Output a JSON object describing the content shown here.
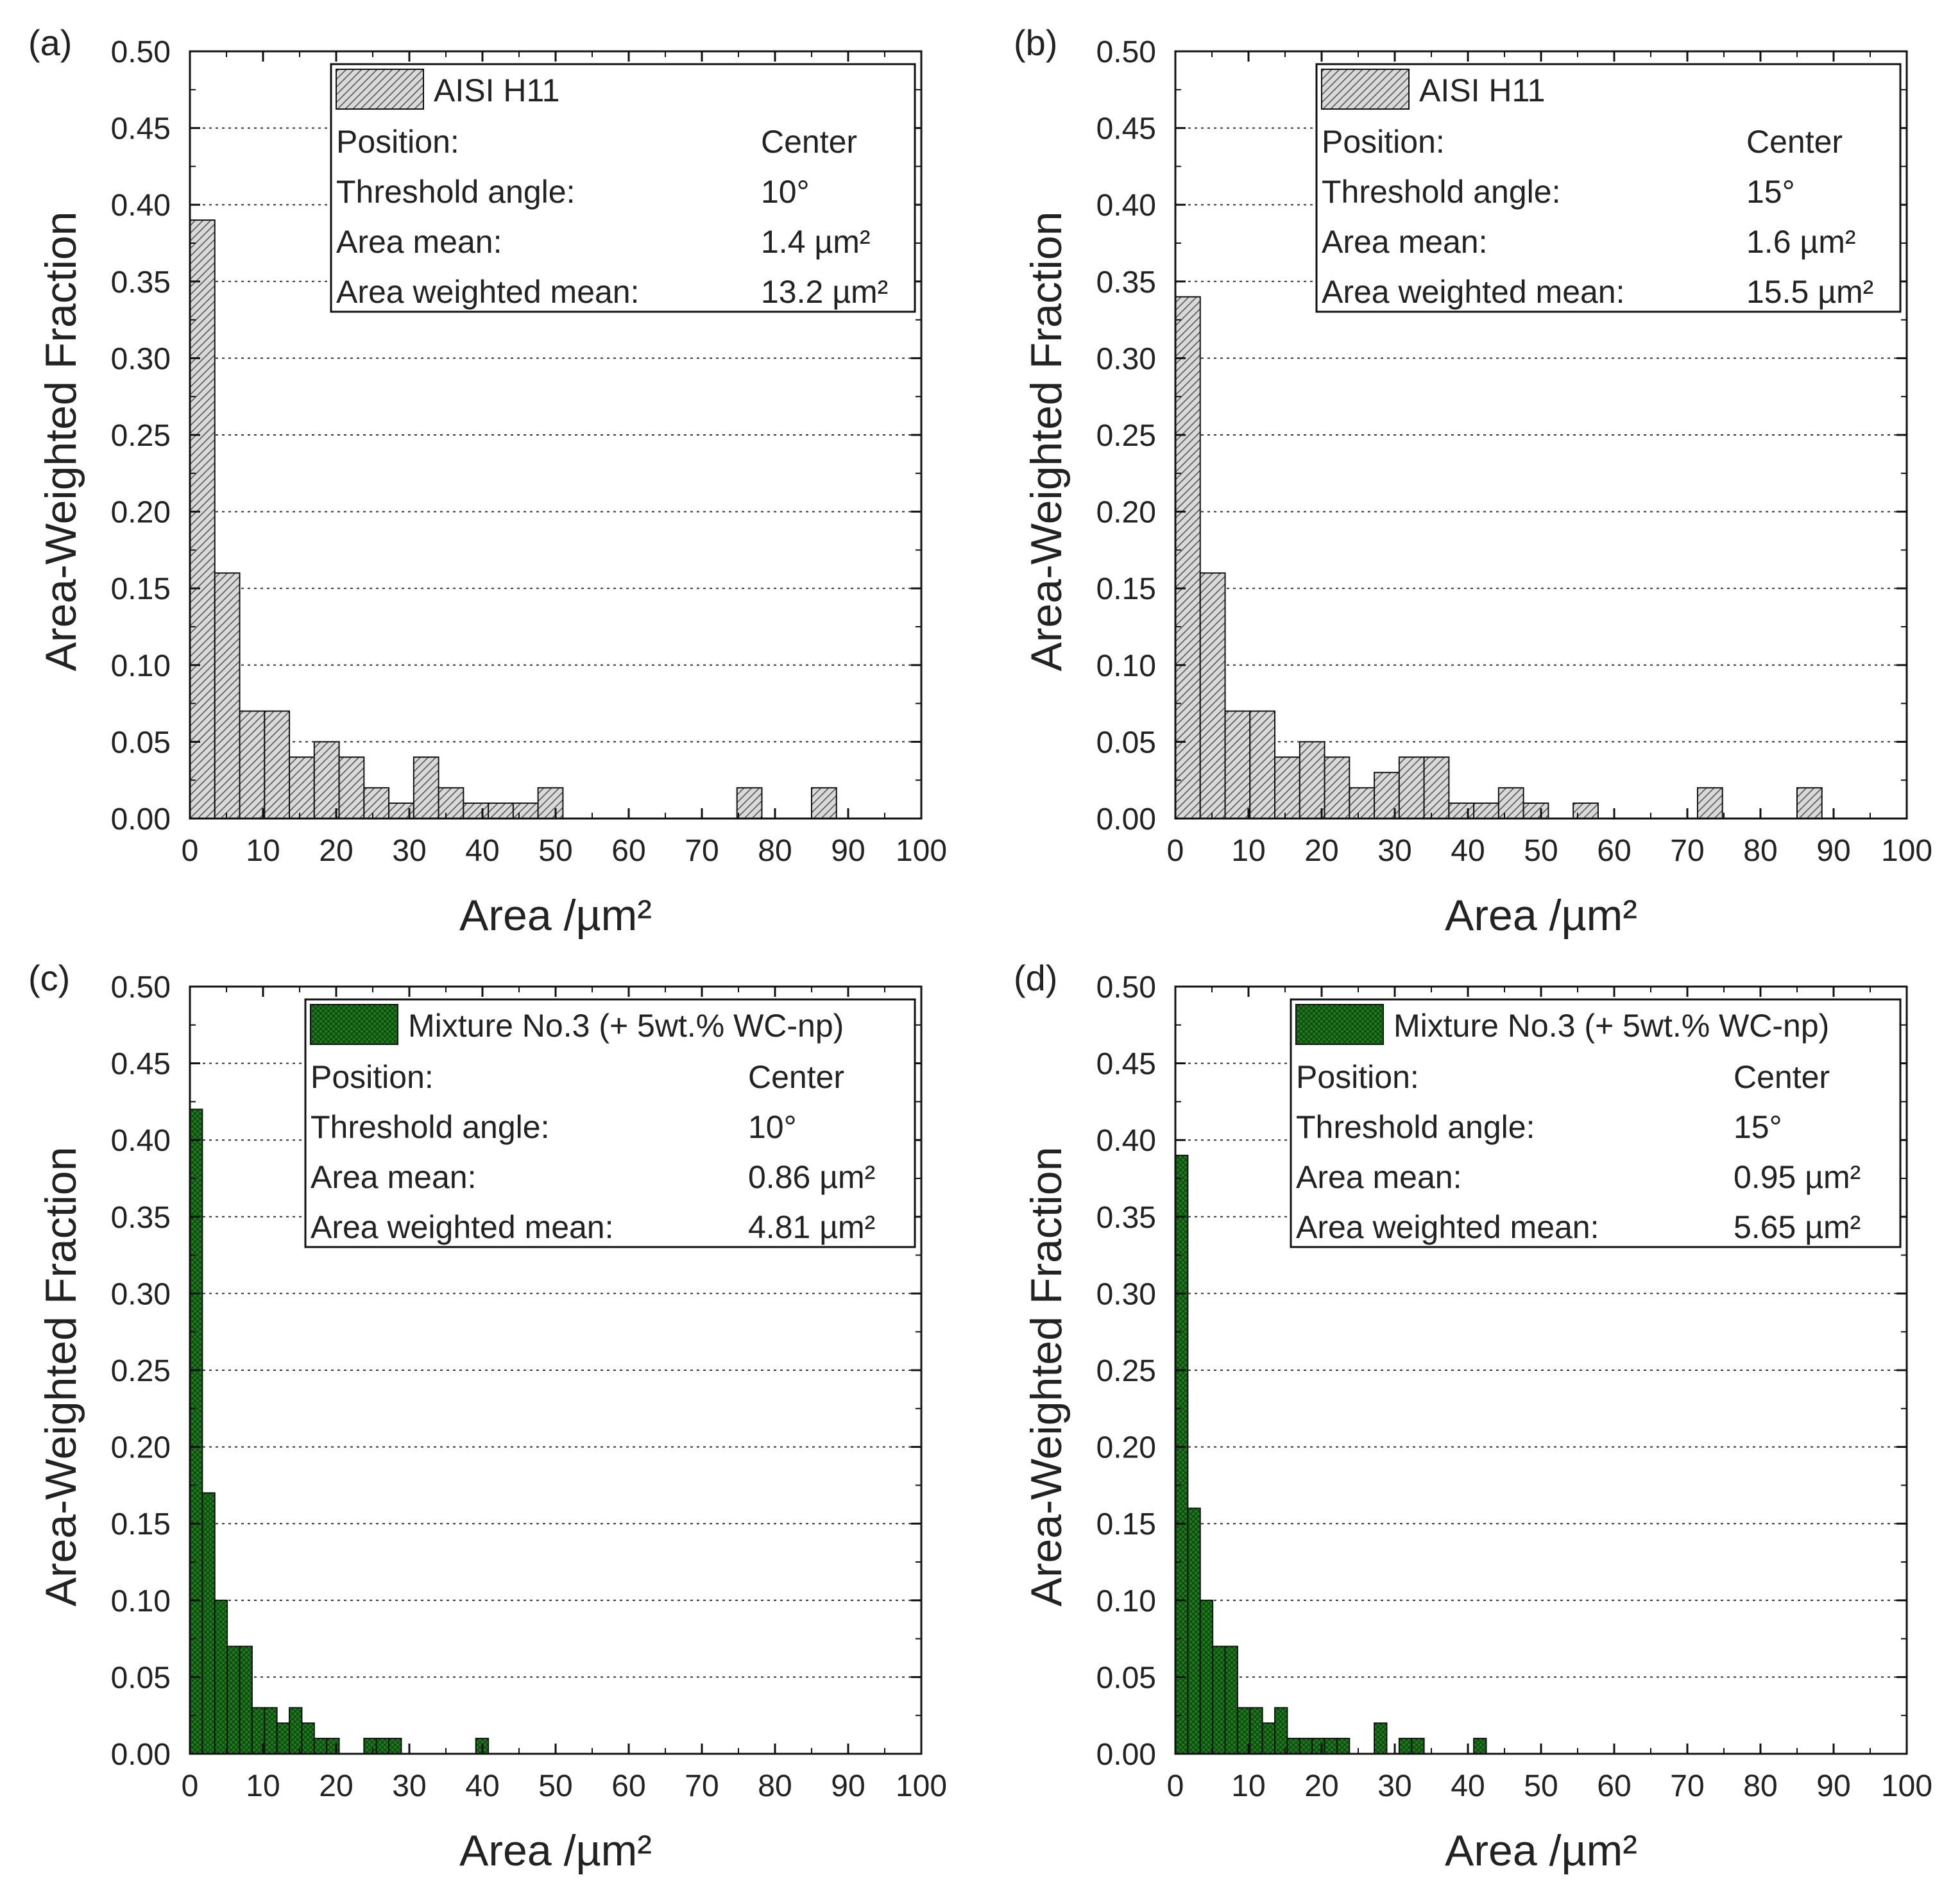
{
  "figure": {
    "panels": [
      {
        "panel_label": "(a)",
        "bar_color": "#d9d9d9",
        "hatch": "diagonal",
        "legend": {
          "series_name": "AISI H11",
          "rows": [
            {
              "label": "Position:",
              "value": "Center"
            },
            {
              "label": "Threshold angle:",
              "value": "10°"
            },
            {
              "label": "Area mean:",
              "value": "1.4 µm²"
            },
            {
              "label": "Area weighted mean:",
              "value": "13.2 µm²"
            }
          ]
        }
      },
      {
        "panel_label": "(b)",
        "bar_color": "#d9d9d9",
        "hatch": "diagonal",
        "legend": {
          "series_name": "AISI H11",
          "rows": [
            {
              "label": "Position:",
              "value": "Center"
            },
            {
              "label": "Threshold angle:",
              "value": "15°"
            },
            {
              "label": "Area mean:",
              "value": "1.6 µm²"
            },
            {
              "label": "Area weighted mean:",
              "value": "15.5 µm²"
            }
          ]
        }
      },
      {
        "panel_label": "(c)",
        "bar_color": "#1e7a1e",
        "hatch": "crosshatch",
        "legend": {
          "series_name": "Mixture No.3 (+ 5wt.% WC-np)",
          "rows": [
            {
              "label": "Position:",
              "value": "Center"
            },
            {
              "label": "Threshold angle:",
              "value": "10°"
            },
            {
              "label": "Area mean:",
              "value": "0.86 µm²"
            },
            {
              "label": "Area weighted mean:",
              "value": "4.81 µm²"
            }
          ]
        }
      },
      {
        "panel_label": "(d)",
        "bar_color": "#1e7a1e",
        "hatch": "crosshatch",
        "legend": {
          "series_name": "Mixture No.3 (+ 5wt.% WC-np)",
          "rows": [
            {
              "label": "Position:",
              "value": "Center"
            },
            {
              "label": "Threshold angle:",
              "value": "15°"
            },
            {
              "label": "Area mean:",
              "value": "0.95 µm²"
            },
            {
              "label": "Area weighted mean:",
              "value": "5.65 µm²"
            }
          ]
        }
      }
    ]
  },
  "chart_data": [
    {
      "type": "bar",
      "title": "(a)",
      "xlabel": "Area /µm²",
      "ylabel": "Area-Weighted Fraction",
      "xlim": [
        0,
        100
      ],
      "ylim": [
        0,
        0.5
      ],
      "xticks": [
        0,
        10,
        20,
        30,
        40,
        50,
        60,
        70,
        80,
        90,
        100
      ],
      "yticks": [
        0.0,
        0.05,
        0.1,
        0.15,
        0.2,
        0.25,
        0.3,
        0.35,
        0.4,
        0.45,
        0.5
      ],
      "ytick_labels": [
        "0.00",
        "0.05",
        "0.10",
        "0.15",
        "0.20",
        "0.25",
        "0.30",
        "0.35",
        "0.40",
        "0.45",
        "0.50"
      ],
      "grid": "horizontal-dotted",
      "bin_width": 3.4,
      "series": [
        {
          "name": "AISI H11",
          "values": [
            0.39,
            0.16,
            0.07,
            0.07,
            0.04,
            0.05,
            0.04,
            0.02,
            0.01,
            0.04,
            0.02,
            0.01,
            0.01,
            0.01,
            0.02,
            0,
            0,
            0,
            0,
            0,
            0,
            0,
            0.02,
            0,
            0,
            0.02
          ]
        }
      ]
    },
    {
      "type": "bar",
      "title": "(b)",
      "xlabel": "Area /µm²",
      "ylabel": "Area-Weighted Fraction",
      "xlim": [
        0,
        100
      ],
      "ylim": [
        0,
        0.5
      ],
      "xticks": [
        0,
        10,
        20,
        30,
        40,
        50,
        60,
        70,
        80,
        90,
        100
      ],
      "yticks": [
        0.0,
        0.05,
        0.1,
        0.15,
        0.2,
        0.25,
        0.3,
        0.35,
        0.4,
        0.45,
        0.5
      ],
      "ytick_labels": [
        "0.00",
        "0.05",
        "0.10",
        "0.15",
        "0.20",
        "0.25",
        "0.30",
        "0.35",
        "0.40",
        "0.45",
        "0.50"
      ],
      "grid": "horizontal-dotted",
      "bin_width": 3.4,
      "series": [
        {
          "name": "AISI H11",
          "values": [
            0.34,
            0.16,
            0.07,
            0.07,
            0.04,
            0.05,
            0.04,
            0.02,
            0.03,
            0.04,
            0.04,
            0.01,
            0.01,
            0.02,
            0.01,
            0,
            0.01,
            0,
            0,
            0,
            0,
            0.02,
            0,
            0,
            0,
            0.02
          ]
        }
      ]
    },
    {
      "type": "bar",
      "title": "(c)",
      "xlabel": "Area /µm²",
      "ylabel": "Area-Weighted Fraction",
      "xlim": [
        0,
        100
      ],
      "ylim": [
        0,
        0.5
      ],
      "xticks": [
        0,
        10,
        20,
        30,
        40,
        50,
        60,
        70,
        80,
        90,
        100
      ],
      "yticks": [
        0.0,
        0.05,
        0.1,
        0.15,
        0.2,
        0.25,
        0.3,
        0.35,
        0.4,
        0.45,
        0.5
      ],
      "ytick_labels": [
        "0.00",
        "0.05",
        "0.10",
        "0.15",
        "0.20",
        "0.25",
        "0.30",
        "0.35",
        "0.40",
        "0.45",
        "0.50"
      ],
      "grid": "horizontal-dotted",
      "bin_width": 1.7,
      "series": [
        {
          "name": "Mixture No.3 (+ 5wt.% WC-np)",
          "values": [
            0.42,
            0.17,
            0.1,
            0.07,
            0.07,
            0.03,
            0.03,
            0.02,
            0.03,
            0.02,
            0.01,
            0.01,
            0,
            0,
            0.01,
            0.01,
            0.01,
            0,
            0,
            0,
            0,
            0,
            0,
            0.01
          ]
        }
      ]
    },
    {
      "type": "bar",
      "title": "(d)",
      "xlabel": "Area /µm²",
      "ylabel": "Area-Weighted Fraction",
      "xlim": [
        0,
        100
      ],
      "ylim": [
        0,
        0.5
      ],
      "xticks": [
        0,
        10,
        20,
        30,
        40,
        50,
        60,
        70,
        80,
        90,
        100
      ],
      "yticks": [
        0.0,
        0.05,
        0.1,
        0.15,
        0.2,
        0.25,
        0.3,
        0.35,
        0.4,
        0.45,
        0.5
      ],
      "ytick_labels": [
        "0.00",
        "0.05",
        "0.10",
        "0.15",
        "0.20",
        "0.25",
        "0.30",
        "0.35",
        "0.40",
        "0.45",
        "0.50"
      ],
      "grid": "horizontal-dotted",
      "bin_width": 1.7,
      "series": [
        {
          "name": "Mixture No.3 (+ 5wt.% WC-np)",
          "values": [
            0.39,
            0.16,
            0.1,
            0.07,
            0.07,
            0.03,
            0.03,
            0.02,
            0.03,
            0.01,
            0.01,
            0.01,
            0.01,
            0.01,
            0,
            0,
            0.02,
            0,
            0.01,
            0.01,
            0,
            0,
            0,
            0,
            0.01
          ]
        }
      ]
    }
  ]
}
